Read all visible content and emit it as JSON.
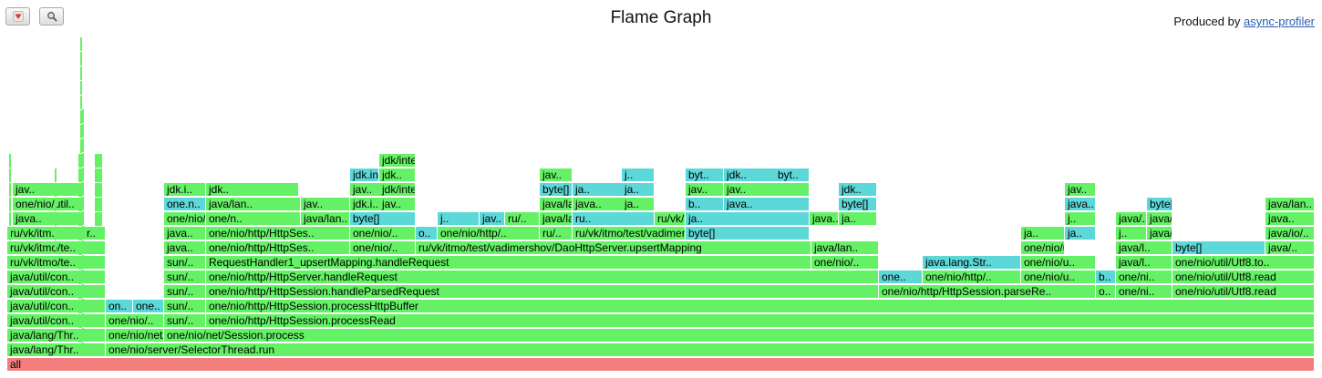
{
  "toolbar": {
    "reverse_icon": "arrow-down-icon",
    "search_icon": "magnifier-icon"
  },
  "header": {
    "title": "Flame Graph",
    "produced_prefix": "Produced by ",
    "produced_link": "async-profiler"
  },
  "colors": {
    "java": "#65f165",
    "inlined": "#5cd8d8",
    "root": "#f37e7e"
  },
  "frames": [
    {
      "label": "all",
      "color": "r"
    },
    {
      "label": "java/lang/Thr..",
      "color": "g"
    },
    {
      "label": "one/nio/server/SelectorThread.run",
      "color": "g"
    },
    {
      "label": "java/lang/Thr..",
      "color": "g"
    },
    {
      "label": "one/nio/net/J..",
      "color": "g"
    },
    {
      "label": "one/nio/net/Session.process",
      "color": "g"
    },
    {
      "label": "java/util/con..",
      "color": "g"
    },
    {
      "label": "one/nio/..",
      "color": "g"
    },
    {
      "label": "sun/..",
      "color": "g"
    },
    {
      "label": "one/nio/http/HttpSession.processRead",
      "color": "g"
    },
    {
      "label": "java/util/con..",
      "color": "g"
    },
    {
      "label": "on..",
      "color": "c"
    },
    {
      "label": "one..",
      "color": "c"
    },
    {
      "label": "sun/..",
      "color": "g"
    },
    {
      "label": "one/nio/http/HttpSession.processHttpBuffer",
      "color": "g"
    },
    {
      "label": "java/util/con..",
      "color": "g"
    },
    {
      "label": "sun/..",
      "color": "g"
    },
    {
      "label": "one/nio/http/HttpSession.handleParsedRequest",
      "color": "g"
    },
    {
      "label": "one/nio/http/HttpSession.parseRe..",
      "color": "g"
    },
    {
      "label": "o..",
      "color": "g"
    },
    {
      "label": "one/ni..",
      "color": "g"
    },
    {
      "label": "one/nio/util/Utf8.read",
      "color": "g"
    },
    {
      "label": "java/util/con..",
      "color": "g"
    },
    {
      "label": "sun/..",
      "color": "g"
    },
    {
      "label": "one/nio/http/HttpServer.handleRequest",
      "color": "g"
    },
    {
      "label": "one..",
      "color": "c"
    },
    {
      "label": "one/nio/http/..",
      "color": "g"
    },
    {
      "label": "one/nio/u..",
      "color": "g"
    },
    {
      "label": "b..",
      "color": "c"
    },
    {
      "label": "one/ni..",
      "color": "g"
    },
    {
      "label": "one/nio/util/Utf8.read",
      "color": "g"
    },
    {
      "label": "ru/vk/itmo/te..",
      "color": "g"
    },
    {
      "label": "sun/..",
      "color": "g"
    },
    {
      "label": "RequestHandler1_upsertMapping.handleRequest",
      "color": "g"
    },
    {
      "label": "one/nio/..",
      "color": "g"
    },
    {
      "label": "java.lang.Str..",
      "color": "c"
    },
    {
      "label": "one/nio/u..",
      "color": "g"
    },
    {
      "label": "java/l..",
      "color": "g"
    },
    {
      "label": "one/nio/util/Utf8.to..",
      "color": "g"
    },
    {
      "label": "ru/vk/itmo/te..",
      "color": "g"
    },
    {
      "label": "java..",
      "color": "g"
    },
    {
      "label": "one/nio/http/HttpSes..",
      "color": "g"
    },
    {
      "label": "one/nio/..",
      "color": "g"
    },
    {
      "label": "ru/vk/itmo/test/vadimershov/DaoHttpServer.upsertMapping",
      "color": "g"
    },
    {
      "label": "java/lan..",
      "color": "g"
    },
    {
      "label": "one/nio/u..",
      "color": "g"
    },
    {
      "label": "java/l..",
      "color": "g"
    },
    {
      "label": "byte[]",
      "color": "c"
    },
    {
      "label": "java/..",
      "color": "g"
    },
    {
      "label": "ru/vk/itm..",
      "color": "g"
    },
    {
      "label": "r..",
      "color": "g"
    },
    {
      "label": "java..",
      "color": "g"
    },
    {
      "label": "one/nio/http/HttpSes..",
      "color": "g"
    },
    {
      "label": "one/nio/..",
      "color": "g"
    },
    {
      "label": "o..",
      "color": "c"
    },
    {
      "label": "one/nio/http/..",
      "color": "g"
    },
    {
      "label": "ru/..",
      "color": "g"
    },
    {
      "label": "ru/vk/itmo/test/vadimershov/utils/M..",
      "color": "g"
    },
    {
      "label": "byte[]",
      "color": "c"
    },
    {
      "label": "ja..",
      "color": "g"
    },
    {
      "label": "ja..",
      "color": "c"
    },
    {
      "label": "j..",
      "color": "g"
    },
    {
      "label": "java/..",
      "color": "g"
    },
    {
      "label": "java/io/..",
      "color": "g"
    },
    {
      "label": "java..",
      "color": "g"
    },
    {
      "label": "one/nio/http..",
      "color": "g"
    },
    {
      "label": "one/n..",
      "color": "g"
    },
    {
      "label": "java/lan..",
      "color": "g"
    },
    {
      "label": "byte[]",
      "color": "c"
    },
    {
      "label": "j..",
      "color": "c"
    },
    {
      "label": "jav..",
      "color": "c"
    },
    {
      "label": "ru/..",
      "color": "g"
    },
    {
      "label": "java/lang/..",
      "color": "g"
    },
    {
      "label": "ru..",
      "color": "c"
    },
    {
      "label": "ru/vk/itmo/test/v..",
      "color": "g"
    },
    {
      "label": "ja..",
      "color": "c"
    },
    {
      "label": "java..",
      "color": "g"
    },
    {
      "label": "ja..",
      "color": "g"
    },
    {
      "label": "j..",
      "color": "g"
    },
    {
      "label": "java/..",
      "color": "g"
    },
    {
      "label": "java/io/..",
      "color": "g"
    },
    {
      "label": "java..",
      "color": "g"
    },
    {
      "label": "one/nio/util..",
      "color": "g"
    },
    {
      "label": "one.n..",
      "color": "c"
    },
    {
      "label": "java/lan..",
      "color": "g"
    },
    {
      "label": "jav..",
      "color": "g"
    },
    {
      "label": "jdk.i..",
      "color": "g"
    },
    {
      "label": "jav..",
      "color": "g"
    },
    {
      "label": "java/lang/f..",
      "color": "g"
    },
    {
      "label": "java..",
      "color": "g"
    },
    {
      "label": "ja..",
      "color": "g"
    },
    {
      "label": "b..",
      "color": "c"
    },
    {
      "label": "java..",
      "color": "c"
    },
    {
      "label": "byte[]",
      "color": "c"
    },
    {
      "label": "java..",
      "color": "c"
    },
    {
      "label": "byte[]",
      "color": "c"
    },
    {
      "label": "java/lan..",
      "color": "g"
    },
    {
      "label": "jav..",
      "color": "g"
    },
    {
      "label": "jdk.i..",
      "color": "g"
    },
    {
      "label": "jdk..",
      "color": "g"
    },
    {
      "label": "jav..",
      "color": "g"
    },
    {
      "label": "jdk/interna..",
      "color": "g"
    },
    {
      "label": "byte[]",
      "color": "c"
    },
    {
      "label": "ja..",
      "color": "c"
    },
    {
      "label": "ja..",
      "color": "c"
    },
    {
      "label": "jav..",
      "color": "g"
    },
    {
      "label": "jav..",
      "color": "g"
    },
    {
      "label": "jdk..",
      "color": "c"
    },
    {
      "label": "jav..",
      "color": "g"
    },
    {
      "label": "jdk.in..",
      "color": "c"
    },
    {
      "label": "jdk..",
      "color": "g"
    },
    {
      "label": "jav..",
      "color": "g"
    },
    {
      "label": "j..",
      "color": "c"
    },
    {
      "label": "byt..",
      "color": "c"
    },
    {
      "label": "jdk..",
      "color": "c"
    },
    {
      "label": "byt..",
      "color": "c"
    },
    {
      "label": "jdk/intern..",
      "color": "g"
    }
  ]
}
